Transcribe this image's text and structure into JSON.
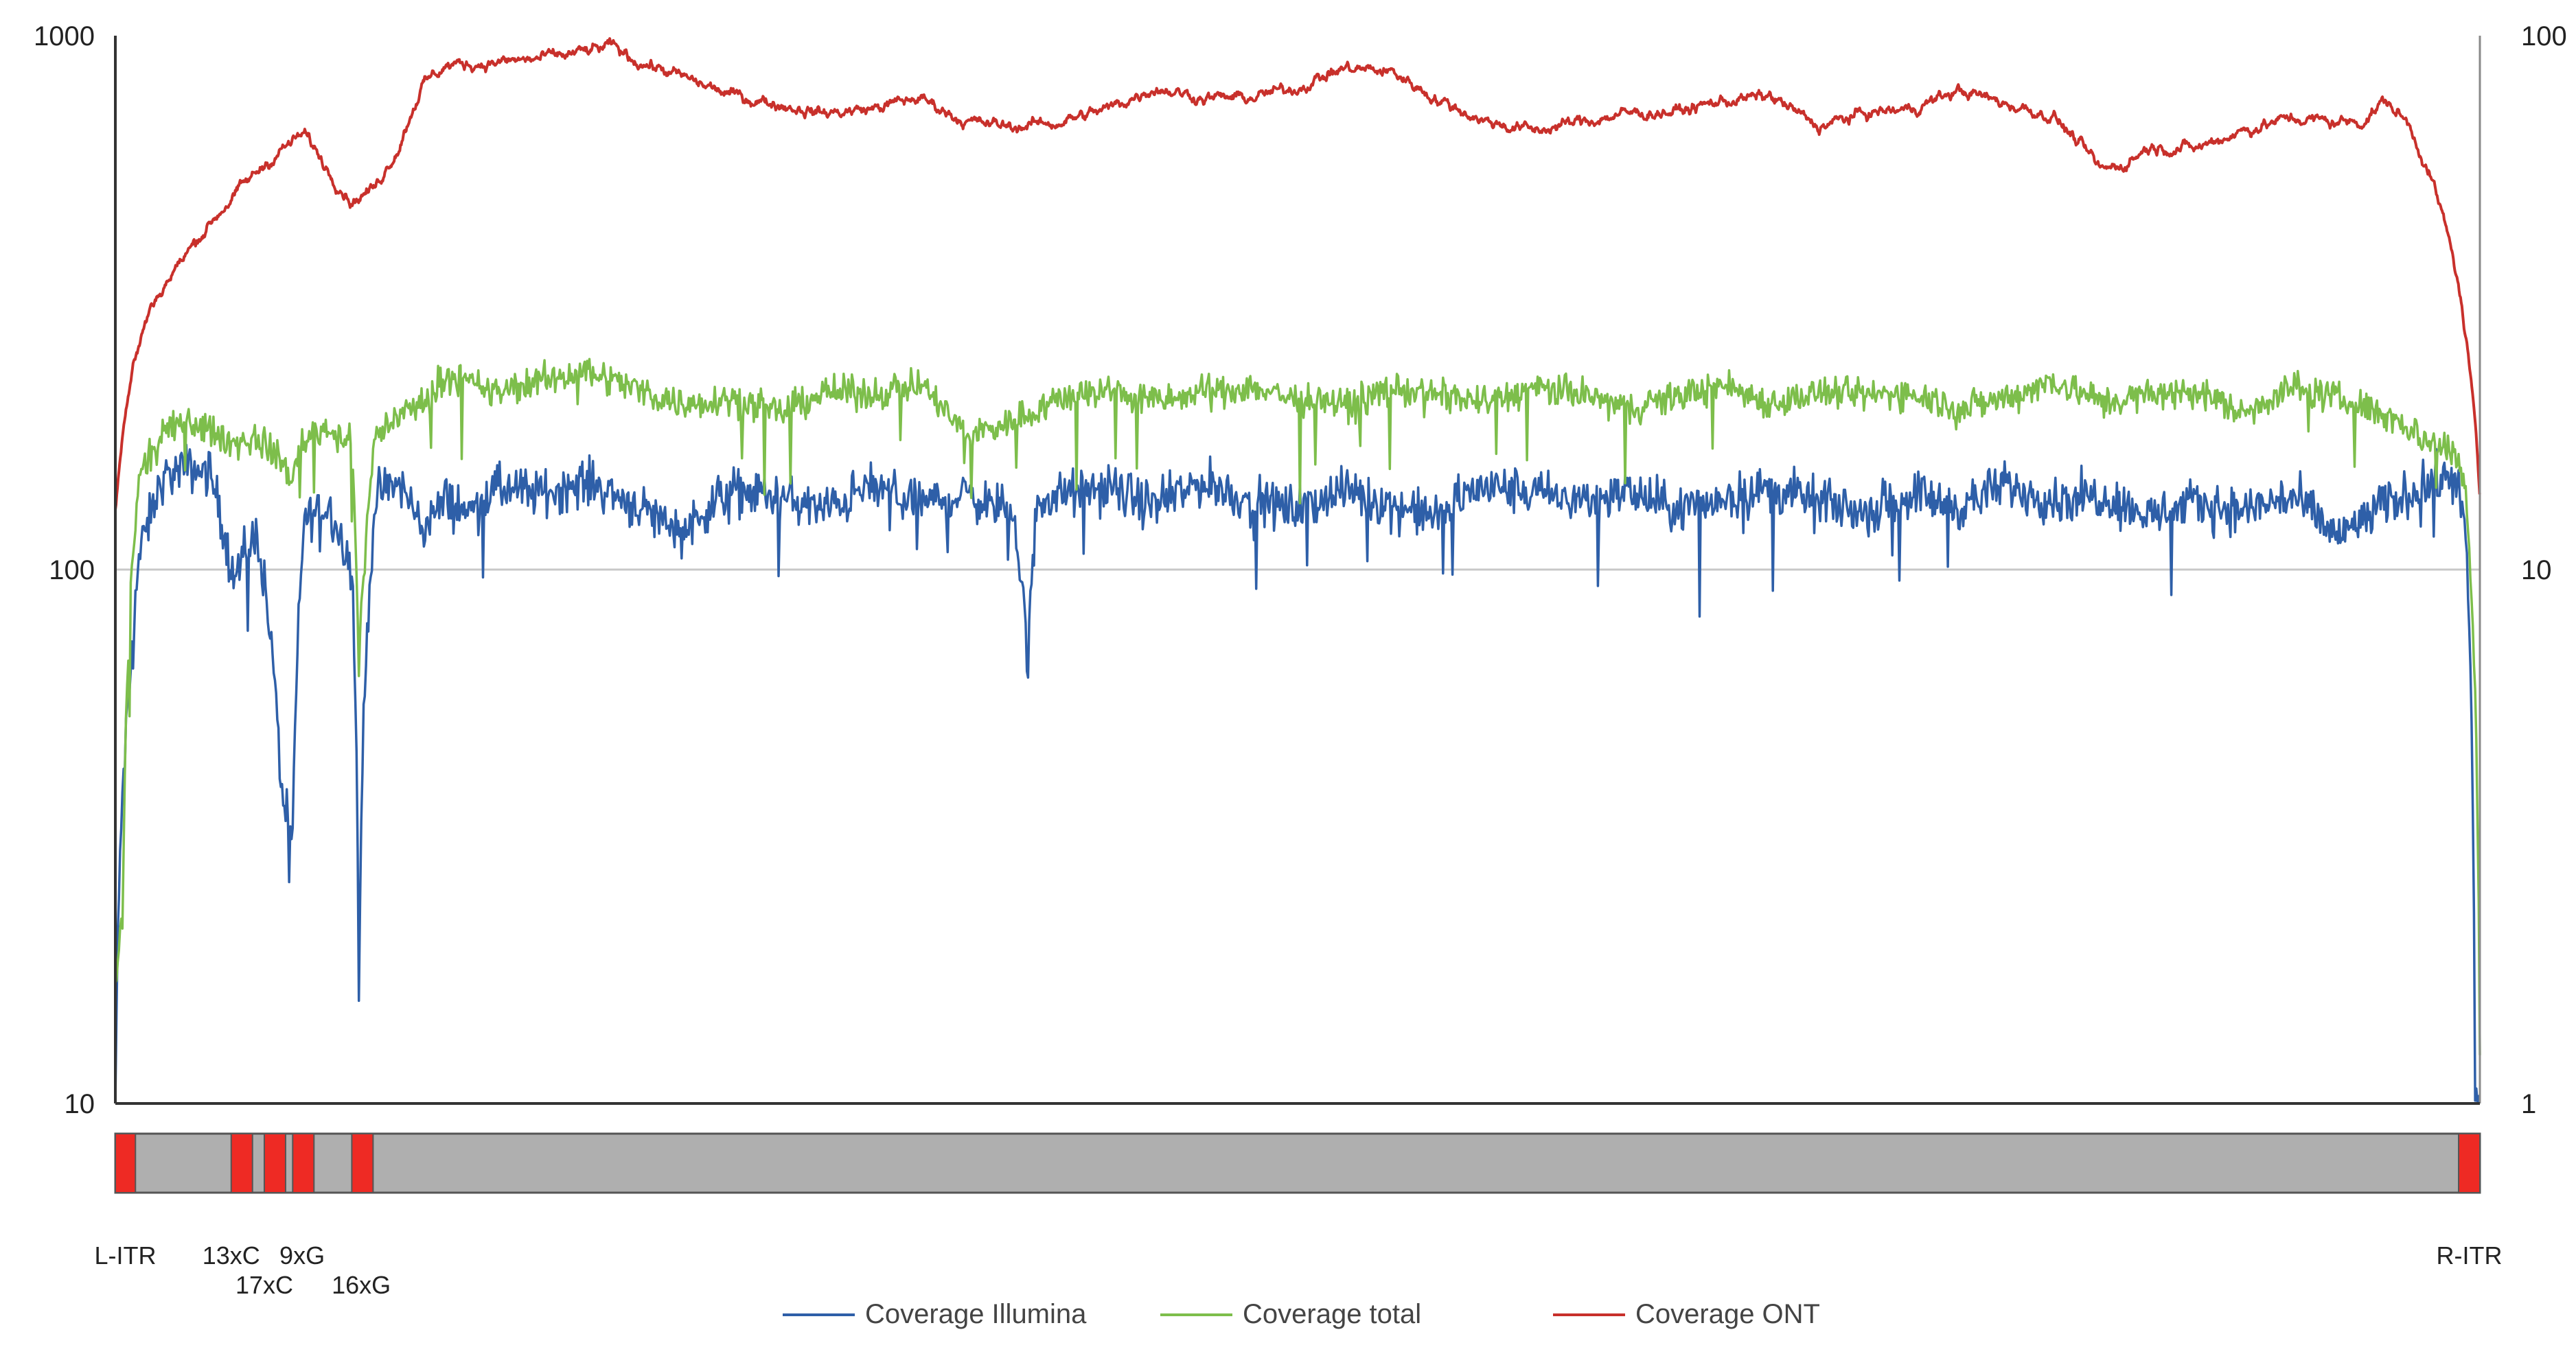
{
  "colors": {
    "illumina": "#2E5FA8",
    "total": "#7DBE4B",
    "ont": "#C8302B",
    "gridline": "#C8C8C8",
    "axis": "#333333",
    "region_bar": "#AFAFAF",
    "region_highlight": "#EE2A24"
  },
  "chart_data": {
    "type": "line",
    "title": "",
    "xlabel": "",
    "ylabel": "",
    "x_range": [
      0,
      100
    ],
    "y_scale": "log",
    "ylim": [
      10,
      1000
    ],
    "y_ticks": [
      "1000",
      "100",
      "10"
    ],
    "y2_scale": "log",
    "y2lim": [
      1,
      100
    ],
    "y2_ticks": [
      "100",
      "10",
      "1"
    ],
    "grid": "horizontal",
    "legend_position": "bottom",
    "series": [
      {
        "name": "Coverage Illumina",
        "color": "#2E5FA8",
        "axis": "right",
        "x": [
          0,
          0.3,
          0.6,
          1,
          2,
          3,
          4,
          5,
          6,
          7,
          7.5,
          8,
          9,
          10,
          10.3,
          11,
          12,
          13,
          14,
          15,
          16,
          18,
          20,
          22,
          24,
          26,
          28,
          30,
          32,
          34,
          36,
          38,
          38.6,
          39,
          42,
          44,
          46,
          48,
          50,
          52,
          54,
          56,
          57,
          58,
          60,
          62,
          64,
          66,
          68,
          70,
          72,
          74,
          76,
          78,
          80,
          82,
          84,
          86,
          88,
          90,
          92,
          94,
          96,
          98,
          99,
          99.4,
          99.8,
          100
        ],
        "values": [
          1.0,
          3.8,
          6.0,
          10.5,
          14.8,
          15.5,
          15.2,
          9.5,
          11.8,
          4.0,
          3.1,
          12.5,
          13.2,
          10.1,
          1.6,
          13.6,
          14.5,
          12.0,
          13.5,
          12.8,
          14.2,
          13.9,
          14.6,
          13.2,
          11.8,
          14.1,
          13.7,
          12.9,
          14.3,
          13.3,
          13.8,
          12.7,
          6.6,
          13.6,
          14.2,
          13.1,
          14.6,
          13.4,
          13.0,
          14.1,
          13.2,
          12.5,
          13.8,
          14.3,
          13.9,
          13.5,
          14.0,
          12.9,
          13.6,
          14.2,
          13.4,
          12.8,
          13.9,
          13.1,
          14.4,
          13.5,
          13.8,
          12.6,
          13.3,
          12.9,
          13.7,
          11.5,
          13.2,
          14.6,
          15.1,
          11.5,
          1.0,
          1.0
        ]
      },
      {
        "name": "Coverage total",
        "color": "#7DBE4B",
        "axis": "left",
        "x": [
          0,
          0.3,
          0.6,
          1,
          2,
          3,
          4,
          5,
          6,
          7,
          7.5,
          8,
          9,
          10,
          10.3,
          11,
          12,
          13,
          14,
          16,
          18,
          20,
          22,
          24,
          26,
          28,
          30,
          32,
          34,
          36,
          38,
          40,
          42,
          44,
          46,
          48,
          50,
          52,
          54,
          56,
          58,
          60,
          62,
          64,
          66,
          68,
          70,
          72,
          74,
          76,
          78,
          80,
          82,
          84,
          86,
          88,
          90,
          92,
          94,
          96,
          98,
          99,
          99.4,
          99.8,
          100
        ],
        "values": [
          17,
          22,
          80,
          148,
          178,
          190,
          182,
          172,
          176,
          160,
          148,
          178,
          184,
          172,
          66,
          178,
          195,
          205,
          232,
          214,
          226,
          236,
          218,
          204,
          210,
          196,
          215,
          213,
          223,
          178,
          190,
          210,
          218,
          206,
          214,
          220,
          208,
          204,
          218,
          212,
          206,
          218,
          213,
          200,
          211,
          222,
          205,
          214,
          212,
          215,
          200,
          210,
          226,
          206,
          212,
          216,
          196,
          220,
          209,
          196,
          172,
          168,
          138,
          60,
          12
        ]
      },
      {
        "name": "Coverage ONT",
        "color": "#C8302B",
        "axis": "left",
        "x": [
          0,
          0.3,
          0.8,
          1.5,
          3,
          5,
          7,
          8,
          9,
          10,
          11,
          12,
          13,
          14,
          16,
          18,
          20,
          21,
          22,
          24,
          26,
          28,
          30,
          32,
          34,
          36,
          38,
          40,
          42,
          44,
          46,
          48,
          50,
          52,
          54,
          56,
          58,
          60,
          62,
          64,
          66,
          68,
          70,
          72,
          74,
          76,
          78,
          80,
          82,
          83,
          84,
          85,
          86,
          88,
          90,
          92,
          94,
          95,
          96,
          97,
          98,
          99,
          99.6,
          100
        ],
        "values": [
          130,
          180,
          245,
          310,
          390,
          500,
          610,
          655,
          560,
          490,
          520,
          620,
          810,
          880,
          890,
          905,
          935,
          955,
          900,
          835,
          775,
          745,
          715,
          730,
          765,
          690,
          675,
          690,
          730,
          800,
          765,
          765,
          800,
          870,
          855,
          755,
          690,
          665,
          690,
          715,
          720,
          755,
          770,
          675,
          715,
          730,
          790,
          745,
          705,
          630,
          560,
          575,
          620,
          615,
          665,
          700,
          690,
          690,
          755,
          680,
          530,
          360,
          230,
          135
        ]
      }
    ]
  },
  "regions": {
    "markers": [
      {
        "start": 0.0,
        "end": 0.85
      },
      {
        "start": 4.9,
        "end": 5.8
      },
      {
        "start": 6.3,
        "end": 7.2
      },
      {
        "start": 7.5,
        "end": 8.4
      },
      {
        "start": 10.0,
        "end": 10.9
      },
      {
        "start": 99.1,
        "end": 100.0
      }
    ],
    "labels": [
      {
        "text": "L-ITR",
        "pos": 0.42,
        "row": 1
      },
      {
        "text": "13xC",
        "pos": 4.9,
        "row": 1
      },
      {
        "text": "9xG",
        "pos": 7.9,
        "row": 1
      },
      {
        "text": "17xC",
        "pos": 6.3,
        "row": 2
      },
      {
        "text": "16xG",
        "pos": 10.4,
        "row": 2
      },
      {
        "text": "R-ITR",
        "pos": 99.55,
        "row": 1
      }
    ]
  },
  "legend": [
    {
      "label": "Coverage Illumina",
      "color": "#2E5FA8"
    },
    {
      "label": "Coverage total",
      "color": "#7DBE4B"
    },
    {
      "label": "Coverage ONT",
      "color": "#C8302B"
    }
  ]
}
